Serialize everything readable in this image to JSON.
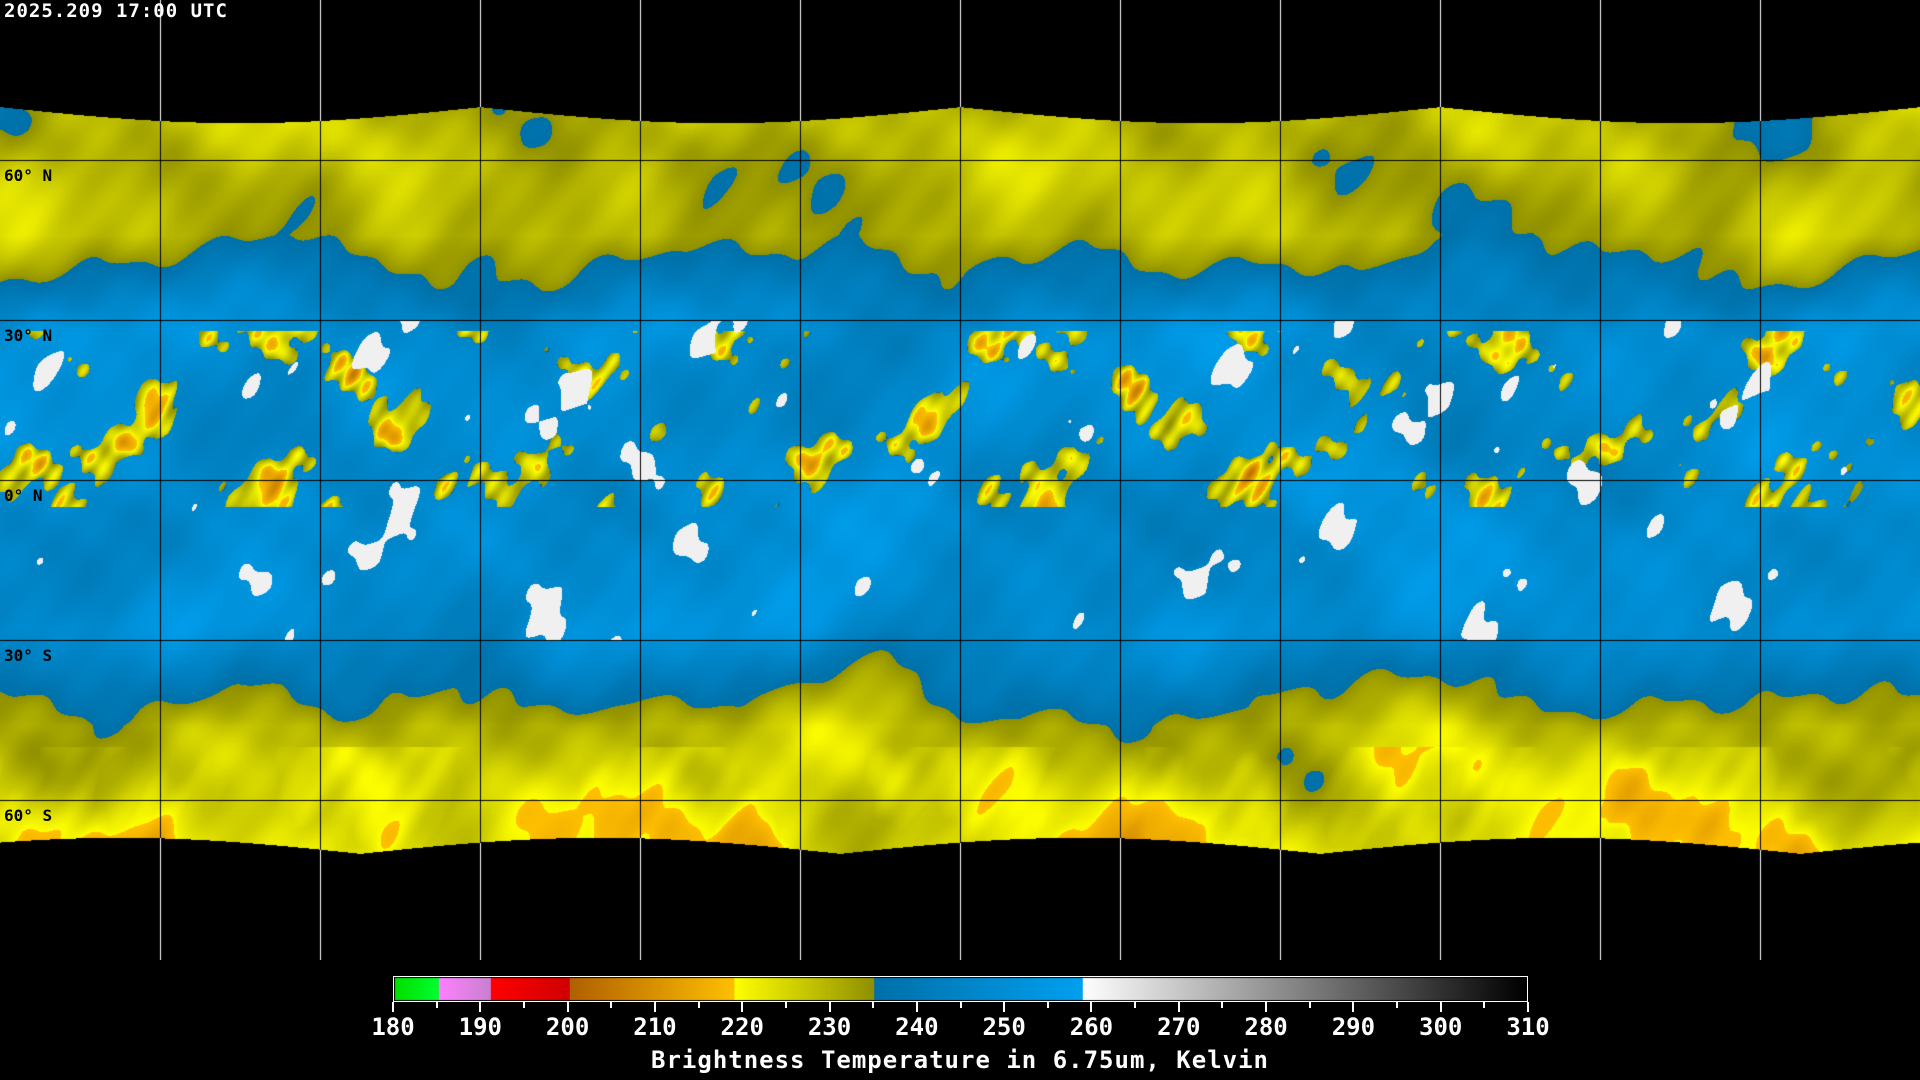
{
  "timestamp": "2025.209 17:00 UTC",
  "latitude_labels": [
    "60° N",
    "30° N",
    "0° N",
    "30° S",
    "60° S"
  ],
  "colorbar": {
    "title": "Brightness Temperature in 6.75um, Kelvin",
    "min": 180,
    "max": 310,
    "ticks": [
      "180",
      "190",
      "200",
      "210",
      "220",
      "230",
      "240",
      "250",
      "260",
      "270",
      "280",
      "290",
      "300",
      "310"
    ],
    "segments": [
      {
        "from": 180,
        "to": 185,
        "colors": [
          "#00e000",
          "#00ff30"
        ]
      },
      {
        "from": 185,
        "to": 191,
        "colors": [
          "#ff80ff",
          "#c880d0"
        ]
      },
      {
        "from": 191,
        "to": 200,
        "colors": [
          "#ff0000",
          "#d00000"
        ]
      },
      {
        "from": 200,
        "to": 219,
        "colors": [
          "#b06000",
          "#ffc000"
        ]
      },
      {
        "from": 219,
        "to": 235,
        "colors": [
          "#ffff00",
          "#909000"
        ]
      },
      {
        "from": 235,
        "to": 259,
        "colors": [
          "#0070a8",
          "#00a0f0"
        ]
      },
      {
        "from": 259,
        "to": 310,
        "colors": [
          "#ffffff",
          "#000000"
        ]
      }
    ]
  },
  "grid": {
    "lon_step_deg": 30,
    "lat_step_deg": 30
  }
}
